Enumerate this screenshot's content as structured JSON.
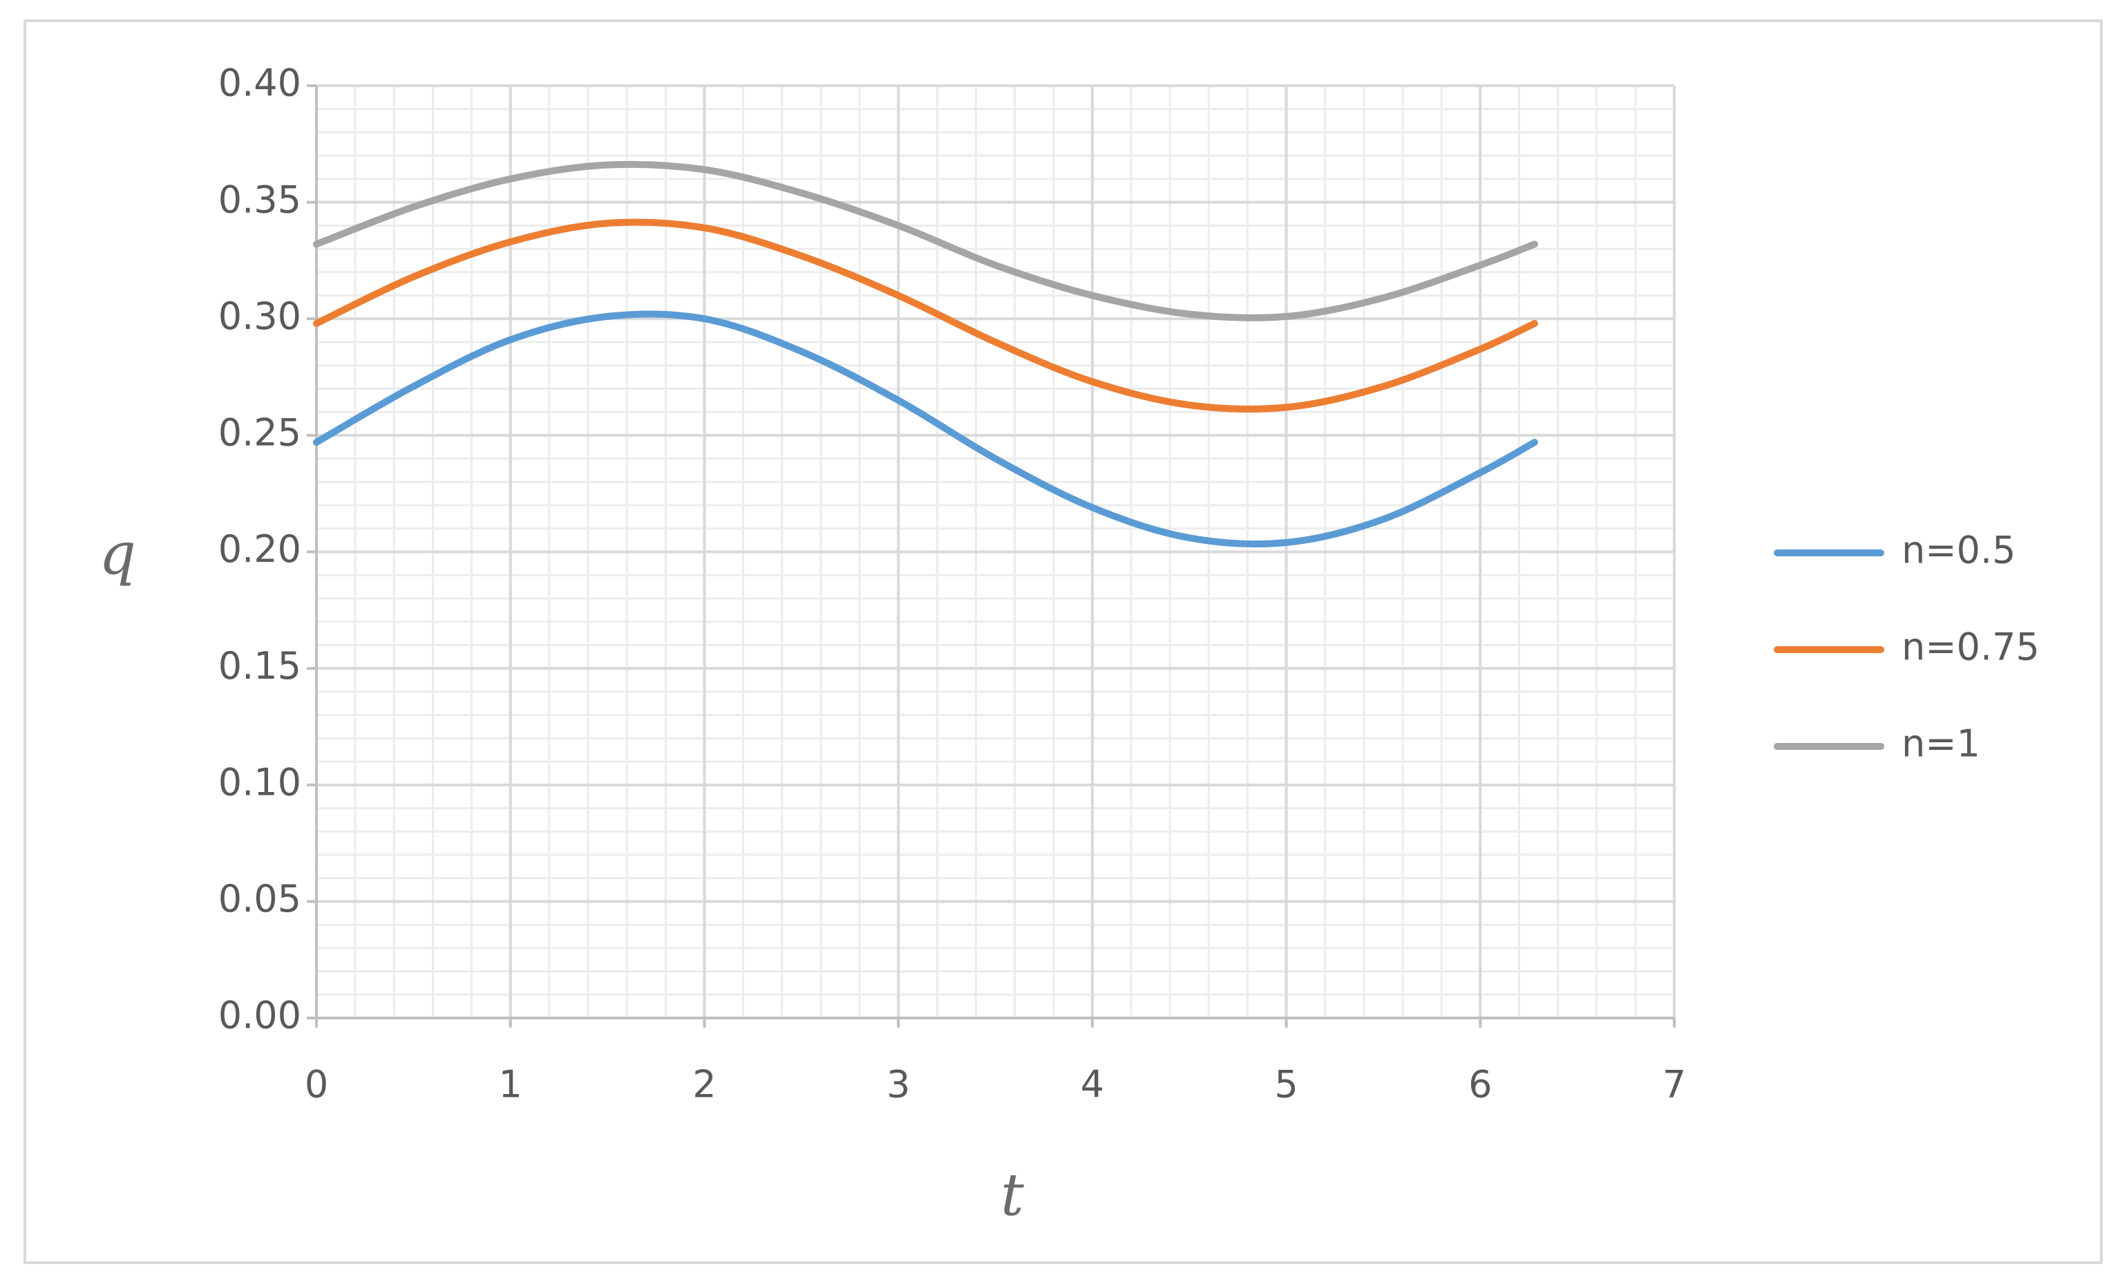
{
  "chart_data": {
    "type": "line",
    "x_label": "t",
    "y_label": "q",
    "x": [
      0,
      0.5,
      1,
      1.5,
      2,
      2.5,
      3,
      3.5,
      4,
      4.5,
      5,
      5.5,
      6,
      6.28
    ],
    "series": [
      {
        "name": "n=0.5",
        "color": "#5b9bd5",
        "values": [
          0.247,
          0.271,
          0.291,
          0.301,
          0.3,
          0.286,
          0.265,
          0.24,
          0.219,
          0.206,
          0.204,
          0.214,
          0.234,
          0.247
        ]
      },
      {
        "name": "n=0.75",
        "color": "#ed7d31",
        "values": [
          0.298,
          0.318,
          0.333,
          0.341,
          0.339,
          0.327,
          0.31,
          0.29,
          0.273,
          0.263,
          0.262,
          0.271,
          0.287,
          0.298
        ]
      },
      {
        "name": "n=1",
        "color": "#a5a5a5",
        "values": [
          0.332,
          0.348,
          0.36,
          0.366,
          0.364,
          0.354,
          0.34,
          0.323,
          0.31,
          0.302,
          0.301,
          0.309,
          0.323,
          0.332
        ]
      }
    ],
    "xlim": [
      0,
      7
    ],
    "xticks": [
      0,
      1,
      2,
      3,
      4,
      5,
      6,
      7
    ],
    "ylim": [
      0,
      0.4
    ],
    "yticks": [
      {
        "value": 0,
        "label": "0.00"
      },
      {
        "value": 0.05,
        "label": "0.05"
      },
      {
        "value": 0.1,
        "label": "0.10"
      },
      {
        "value": 0.15,
        "label": "0.15"
      },
      {
        "value": 0.2,
        "label": "0.20"
      },
      {
        "value": 0.25,
        "label": "0.25"
      },
      {
        "value": 0.3,
        "label": "0.30"
      },
      {
        "value": 0.35,
        "label": "0.35"
      },
      {
        "value": 0.4,
        "label": "0.40"
      }
    ],
    "grid": true,
    "minor_grid": true,
    "legend": "right"
  }
}
